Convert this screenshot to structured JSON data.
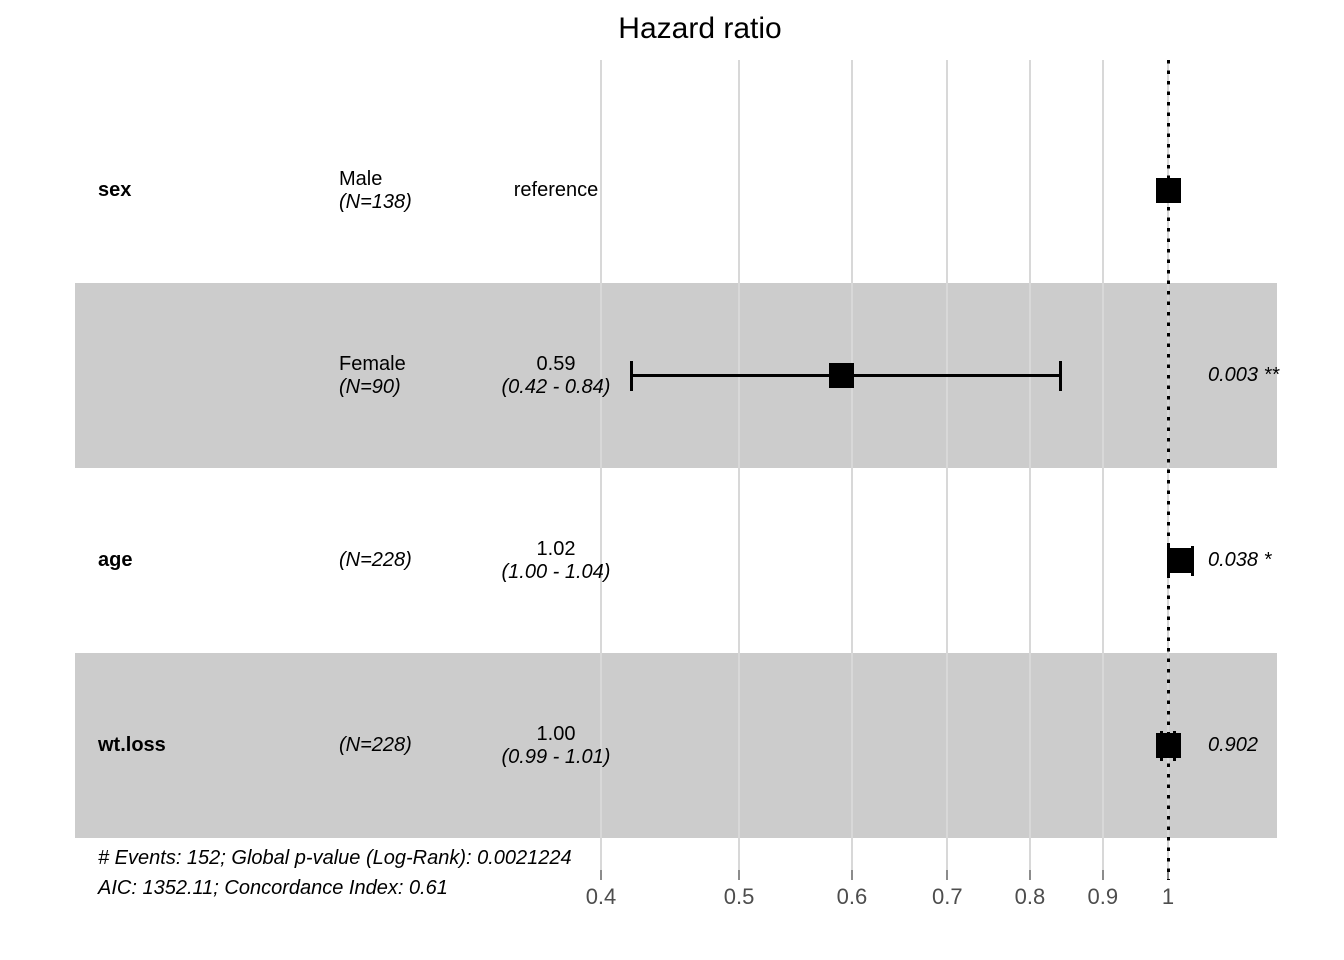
{
  "footer": {
    "line1": "# Events: 152; Global p-value (Log-Rank): 0.0021224",
    "line2": "AIC: 1352.11; Concordance Index: 0.61"
  },
  "colors": {
    "band": "#cccccc",
    "marker": "#000000",
    "gridline": "#d8d8d8",
    "axis_tick": "#8c8c8c",
    "tick_label": "#4d4d4d",
    "reference_line": "#000000",
    "text": "#000000",
    "background": "#ffffff"
  },
  "chart_data": {
    "type": "scatter",
    "subtype": "forest-plot-hazard-ratio",
    "title": "Hazard ratio",
    "x_scale": "log",
    "x_ticks": [
      "0.4",
      "0.5",
      "0.6",
      "0.7",
      "0.8",
      "0.9",
      "1"
    ],
    "x_tick_values": [
      0.4,
      0.5,
      0.6,
      0.7,
      0.8,
      0.9,
      1
    ],
    "xlim": [
      0.37,
      1.12
    ],
    "reference_line": 1,
    "grid": "vertical-only",
    "rows": [
      {
        "term": "sex",
        "level": "Male",
        "n_label": "(N=138)",
        "estimate_label": "reference",
        "estimate": 1.0,
        "ci_low": null,
        "ci_high": null,
        "ci_label": "",
        "p_label": "",
        "shaded": false
      },
      {
        "term": "",
        "level": "Female",
        "n_label": "(N=90)",
        "estimate_label": "0.59",
        "estimate": 0.59,
        "ci_low": 0.42,
        "ci_high": 0.84,
        "ci_label": "(0.42 - 0.84)",
        "p_label": "0.003 **",
        "shaded": true
      },
      {
        "term": "age",
        "level": "",
        "n_label": "(N=228)",
        "estimate_label": "1.02",
        "estimate": 1.02,
        "ci_low": 1.0,
        "ci_high": 1.04,
        "ci_label": "(1.00 - 1.04)",
        "p_label": "0.038 *",
        "shaded": false
      },
      {
        "term": "wt.loss",
        "level": "",
        "n_label": "(N=228)",
        "estimate_label": "1.00",
        "estimate": 1.0,
        "ci_low": 0.99,
        "ci_high": 1.01,
        "ci_label": "(0.99 - 1.01)",
        "p_label": "0.902",
        "shaded": true
      }
    ]
  }
}
